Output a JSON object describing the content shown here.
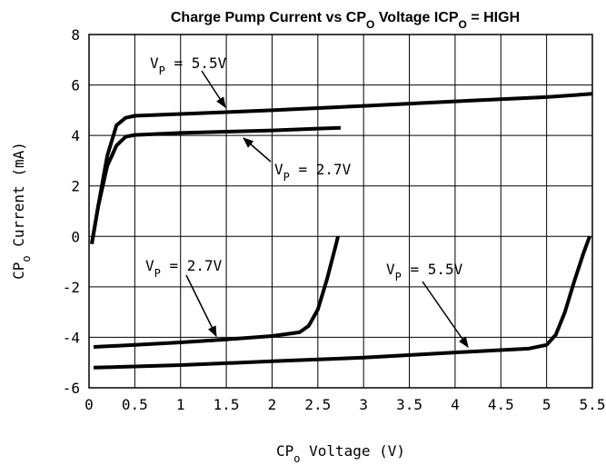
{
  "chart_data": {
    "type": "line",
    "title": [
      "Charge Pump Current vs CP",
      "O",
      " Voltage ICP",
      "O",
      " = HIGH"
    ],
    "xlabel": [
      "CP",
      "o",
      " Voltage (V)"
    ],
    "ylabel": [
      "CP",
      "o",
      " Current (mA)"
    ],
    "xlim": [
      0,
      5.5
    ],
    "ylim": [
      -6,
      8
    ],
    "xticks": [
      0,
      0.5,
      1,
      1.5,
      2,
      2.5,
      3,
      3.5,
      4,
      4.5,
      5,
      5.5
    ],
    "yticks": [
      -6,
      -4,
      -2,
      0,
      2,
      4,
      6,
      8
    ],
    "grid": true,
    "series": [
      {
        "color": "#000000",
        "x": [
          0.03,
          0.1,
          0.2,
          0.3,
          0.4,
          0.5,
          1,
          2,
          3,
          4,
          5,
          5.5
        ],
        "values": [
          -0.3,
          1.2,
          3.2,
          4.4,
          4.7,
          4.78,
          4.85,
          5.0,
          5.17,
          5.35,
          5.52,
          5.65
        ]
      },
      {
        "color": "#000000",
        "x": [
          0.03,
          0.1,
          0.2,
          0.3,
          0.4,
          0.5,
          1,
          1.5,
          2,
          2.5,
          2.75
        ],
        "values": [
          -0.3,
          1.2,
          2.8,
          3.6,
          3.95,
          4.02,
          4.1,
          4.15,
          4.2,
          4.27,
          4.3
        ]
      },
      {
        "color": "#000000",
        "x": [
          0.05,
          0.5,
          1,
          1.5,
          2,
          2.3,
          2.4,
          2.5,
          2.6,
          2.7,
          2.72
        ],
        "values": [
          -4.38,
          -4.3,
          -4.2,
          -4.08,
          -3.95,
          -3.8,
          -3.55,
          -2.9,
          -1.7,
          -0.3,
          0
        ]
      },
      {
        "color": "#000000",
        "x": [
          0.05,
          1,
          2,
          3,
          4,
          4.8,
          5,
          5.1,
          5.2,
          5.3,
          5.4,
          5.47
        ],
        "values": [
          -5.2,
          -5.1,
          -4.95,
          -4.8,
          -4.6,
          -4.45,
          -4.3,
          -3.9,
          -3.0,
          -1.8,
          -0.7,
          0
        ]
      }
    ],
    "annotations": [
      [
        "V",
        "P",
        " = 5.5V"
      ],
      [
        "V",
        "P",
        " = 2.7V"
      ],
      [
        "V",
        "P",
        " = 2.7V"
      ],
      [
        "V",
        "P",
        " = 5.5V"
      ]
    ]
  }
}
